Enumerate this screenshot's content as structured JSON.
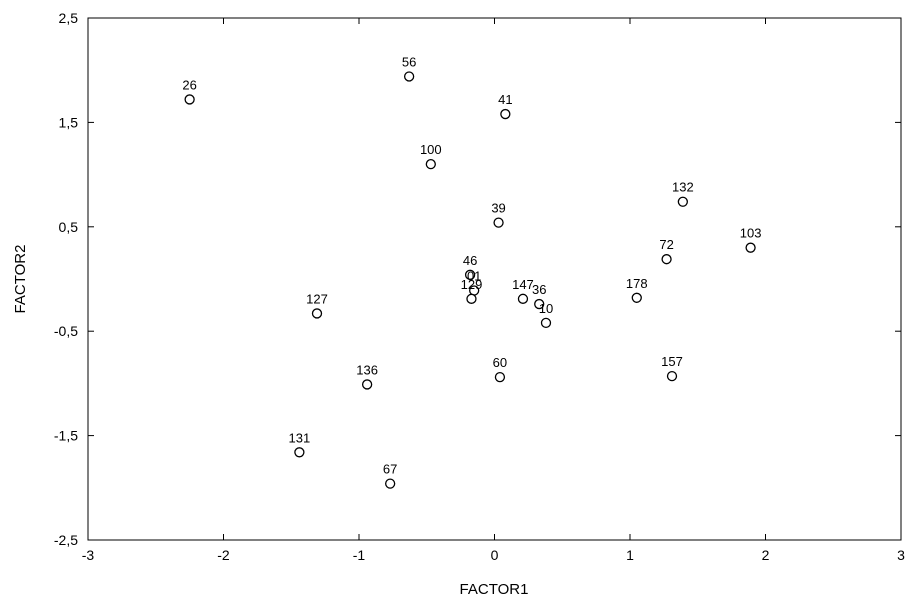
{
  "chart_data": {
    "type": "scatter",
    "xlabel": "FACTOR1",
    "ylabel": "FACTOR2",
    "xlim": [
      -3,
      3
    ],
    "ylim": [
      -2.5,
      2.5
    ],
    "x_ticks": [
      -3,
      -2,
      -1,
      0,
      1,
      2,
      3
    ],
    "x_tick_labels": [
      "-3",
      "-2",
      "-1",
      "0",
      "1",
      "2",
      "3"
    ],
    "y_ticks": [
      2.5,
      1.5,
      0.5,
      -0.5,
      -1.5,
      -2.5
    ],
    "y_tick_labels": [
      "2,5",
      "1,5",
      "0,5",
      "-0,5",
      "-1,5",
      "-2,5"
    ],
    "grid": false,
    "marker": "open-circle",
    "points": [
      {
        "label": "26",
        "x": -2.25,
        "y": 1.72
      },
      {
        "label": "56",
        "x": -0.63,
        "y": 1.94
      },
      {
        "label": "41",
        "x": 0.08,
        "y": 1.58
      },
      {
        "label": "100",
        "x": -0.47,
        "y": 1.1
      },
      {
        "label": "132",
        "x": 1.39,
        "y": 0.74
      },
      {
        "label": "39",
        "x": 0.03,
        "y": 0.54
      },
      {
        "label": "103",
        "x": 1.89,
        "y": 0.3
      },
      {
        "label": "72",
        "x": 1.27,
        "y": 0.19
      },
      {
        "label": "46",
        "x": -0.18,
        "y": 0.04
      },
      {
        "label": "01",
        "x": -0.15,
        "y": -0.11
      },
      {
        "label": "129",
        "x": -0.17,
        "y": -0.19
      },
      {
        "label": "147",
        "x": 0.21,
        "y": -0.19
      },
      {
        "label": "36",
        "x": 0.33,
        "y": -0.24
      },
      {
        "label": "10",
        "x": 0.38,
        "y": -0.42
      },
      {
        "label": "178",
        "x": 1.05,
        "y": -0.18
      },
      {
        "label": "127",
        "x": -1.31,
        "y": -0.33
      },
      {
        "label": "60",
        "x": 0.04,
        "y": -0.94
      },
      {
        "label": "157",
        "x": 1.31,
        "y": -0.93
      },
      {
        "label": "136",
        "x": -0.94,
        "y": -1.01
      },
      {
        "label": "131",
        "x": -1.44,
        "y": -1.66
      },
      {
        "label": "67",
        "x": -0.77,
        "y": -1.96
      }
    ]
  }
}
